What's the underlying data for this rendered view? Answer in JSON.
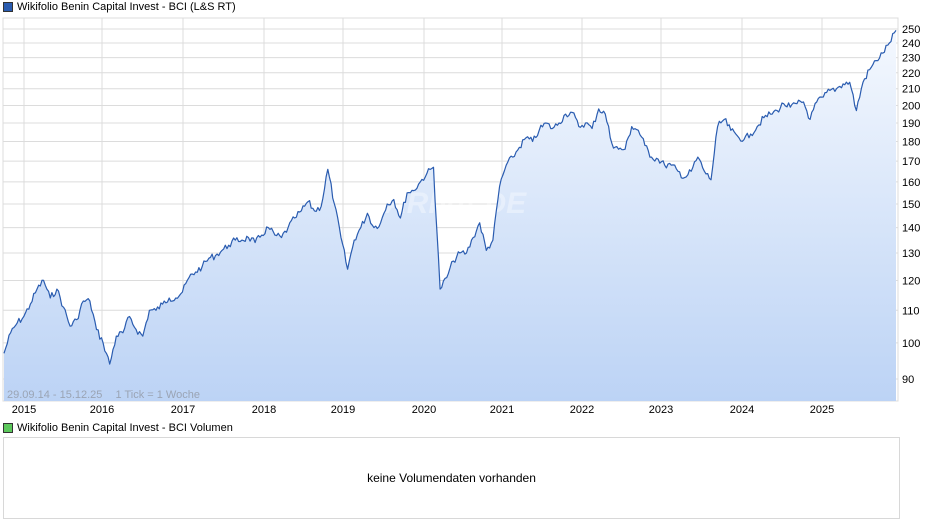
{
  "legend": {
    "main_label": "Wikifolio Benin Capital Invest - BCI (L&S RT)",
    "main_color": "#2a5cb0",
    "volume_label": "Wikifolio Benin Capital Invest - BCI Volumen",
    "volume_color": "#5cc85c"
  },
  "range_label": "29.09.14 - 15.12.25",
  "tick_label": "1 Tick = 1 Woche",
  "watermark": "ARIVA.DE",
  "volume_panel": {
    "message": "keine Volumendaten vorhanden"
  },
  "colors": {
    "line": "#2a5cb0",
    "fill_top": "#f4f8fe",
    "fill_bottom": "#bcd3f5",
    "grid": "#dcdcdc"
  },
  "chart_data": {
    "type": "area",
    "title": "Wikifolio Benin Capital Invest - BCI (L&S RT)",
    "xlabel": "",
    "ylabel": "",
    "y_scale": "log",
    "ylim": [
      86,
      255
    ],
    "yticks": [
      90,
      100,
      110,
      120,
      130,
      140,
      150,
      160,
      170,
      180,
      190,
      200,
      210,
      220,
      230,
      240,
      250
    ],
    "xticks": [
      "2015",
      "2016",
      "2017",
      "2018",
      "2019",
      "2020",
      "2021",
      "2022",
      "2023",
      "2024",
      "2025"
    ],
    "grid": true,
    "legend_position": "top-left",
    "date_range": "29.09.14 - 15.12.25",
    "x": [
      "2014-09",
      "2014-10",
      "2014-11",
      "2014-12",
      "2015-01",
      "2015-02",
      "2015-03",
      "2015-04",
      "2015-05",
      "2015-06",
      "2015-07",
      "2015-08",
      "2015-09",
      "2015-10",
      "2015-11",
      "2015-12",
      "2016-01",
      "2016-02",
      "2016-03",
      "2016-04",
      "2016-05",
      "2016-06",
      "2016-07",
      "2016-08",
      "2016-09",
      "2016-10",
      "2016-11",
      "2016-12",
      "2017-01",
      "2017-02",
      "2017-03",
      "2017-04",
      "2017-05",
      "2017-06",
      "2017-07",
      "2017-08",
      "2017-09",
      "2017-10",
      "2017-11",
      "2017-12",
      "2018-01",
      "2018-02",
      "2018-03",
      "2018-04",
      "2018-05",
      "2018-06",
      "2018-07",
      "2018-08",
      "2018-09",
      "2018-10",
      "2018-11",
      "2018-12",
      "2019-01",
      "2019-02",
      "2019-03",
      "2019-04",
      "2019-05",
      "2019-06",
      "2019-07",
      "2019-08",
      "2019-09",
      "2019-10",
      "2019-11",
      "2019-12",
      "2020-01",
      "2020-02",
      "2020-03",
      "2020-04",
      "2020-05",
      "2020-06",
      "2020-07",
      "2020-08",
      "2020-09",
      "2020-10",
      "2020-11",
      "2020-12",
      "2021-01",
      "2021-02",
      "2021-03",
      "2021-04",
      "2021-05",
      "2021-06",
      "2021-07",
      "2021-08",
      "2021-09",
      "2021-10",
      "2021-11",
      "2021-12",
      "2022-01",
      "2022-02",
      "2022-03",
      "2022-04",
      "2022-05",
      "2022-06",
      "2022-07",
      "2022-08",
      "2022-09",
      "2022-10",
      "2022-11",
      "2022-12",
      "2023-01",
      "2023-02",
      "2023-03",
      "2023-04",
      "2023-05",
      "2023-06",
      "2023-07",
      "2023-08",
      "2023-09",
      "2023-10",
      "2023-11",
      "2023-12",
      "2024-01",
      "2024-02",
      "2024-03",
      "2024-04",
      "2024-05",
      "2024-06",
      "2024-07",
      "2024-08",
      "2024-09",
      "2024-10",
      "2024-11",
      "2024-12",
      "2025-01",
      "2025-02",
      "2025-03",
      "2025-04",
      "2025-05",
      "2025-06",
      "2025-07",
      "2025-08",
      "2025-09",
      "2025-10",
      "2025-11",
      "2025-12"
    ],
    "series": [
      {
        "name": "Wikifolio Benin Capital Invest - BCI (L&S RT)",
        "values": [
          97,
          103,
          106,
          108,
          112,
          117,
          120,
          114,
          117,
          111,
          105,
          107,
          113,
          113,
          104,
          100,
          94,
          102,
          103,
          108,
          104,
          102,
          110,
          110,
          112,
          114,
          114,
          116,
          121,
          123,
          125,
          128,
          129,
          131,
          133,
          135,
          135,
          136,
          134,
          137,
          140,
          137,
          136,
          140,
          144,
          147,
          151,
          147,
          149,
          166,
          150,
          136,
          124,
          135,
          140,
          146,
          140,
          142,
          150,
          152,
          144,
          155,
          156,
          160,
          164,
          167,
          117,
          121,
          127,
          130,
          130,
          136,
          142,
          131,
          135,
          158,
          168,
          172,
          177,
          182,
          180,
          186,
          190,
          187,
          190,
          195,
          196,
          188,
          190,
          187,
          198,
          195,
          179,
          176,
          176,
          188,
          186,
          178,
          172,
          171,
          168,
          168,
          165,
          162,
          165,
          172,
          165,
          161,
          188,
          192,
          186,
          183,
          181,
          184,
          188,
          193,
          195,
          197,
          201,
          199,
          201,
          202,
          192,
          202,
          205,
          209,
          210,
          213,
          214,
          197,
          214,
          222,
          228,
          233,
          240,
          249
        ]
      }
    ]
  }
}
